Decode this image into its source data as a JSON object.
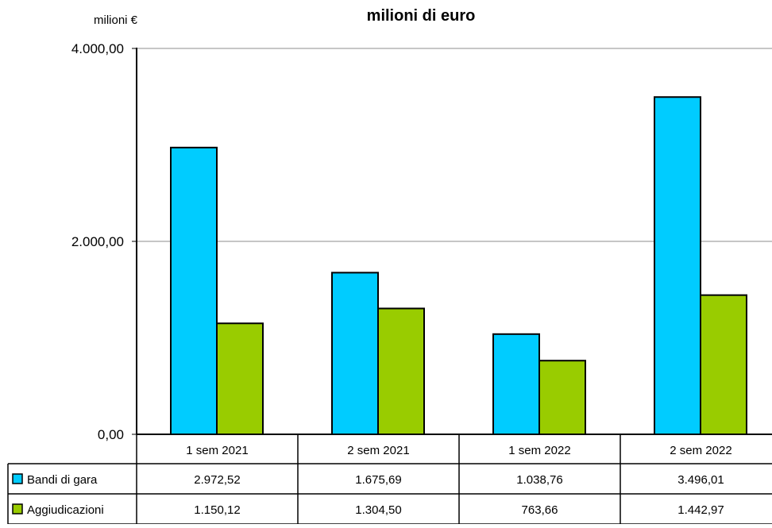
{
  "chart_data": {
    "type": "bar",
    "title": "milioni di euro",
    "ylabel": "milioni €",
    "categories": [
      "1 sem 2021",
      "2 sem 2021",
      "1 sem 2022",
      "2 sem 2022"
    ],
    "series": [
      {
        "name": "Bandi di gara",
        "color": "#00ccff",
        "values": [
          2972.52,
          1675.69,
          1038.76,
          3496.01
        ],
        "labels": [
          "2.972,52",
          "1.675,69",
          "1.038,76",
          "3.496,01"
        ]
      },
      {
        "name": "Aggiudicazioni",
        "color": "#99cc00",
        "values": [
          1150.12,
          1304.5,
          763.66,
          1442.97
        ],
        "labels": [
          "1.150,12",
          "1.304,50",
          "763,66",
          "1.442,97"
        ]
      }
    ],
    "ylim": [
      0,
      4000
    ],
    "yticks": [
      0,
      2000,
      4000
    ],
    "ytick_labels": [
      "0,00",
      "2.000,00",
      "4.000,00"
    ],
    "grid": true,
    "legend": "data-table"
  }
}
